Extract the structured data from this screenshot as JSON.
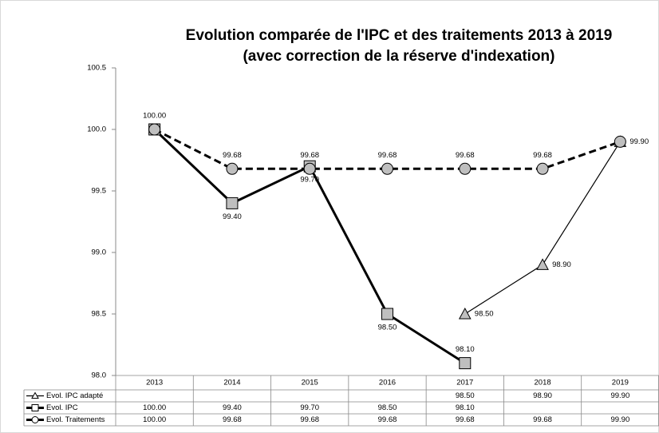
{
  "chart_data": {
    "type": "line",
    "title": "Evolution comparée de l'IPC et des traitements 2013 à 2019",
    "subtitle": "(avec correction de la réserve d'indexation)",
    "categories": [
      "2013",
      "2014",
      "2015",
      "2016",
      "2017",
      "2018",
      "2019"
    ],
    "ylim": [
      98.0,
      100.5
    ],
    "yticks": [
      {
        "value": 98.0,
        "label": "98.0"
      },
      {
        "value": 98.5,
        "label": "98.5"
      },
      {
        "value": 99.0,
        "label": "99.0"
      },
      {
        "value": 99.5,
        "label": "99.5"
      },
      {
        "value": 100.0,
        "label": "100.0"
      },
      {
        "value": 100.5,
        "label": "100.5"
      }
    ],
    "series": [
      {
        "name": "Evol. IPC adapté",
        "color": "#000000",
        "marker": "triangle",
        "marker_color": "#bfbfbf",
        "values": [
          null,
          null,
          null,
          null,
          98.5,
          98.9,
          99.9
        ],
        "value_labels": [
          null,
          null,
          null,
          null,
          "98.50",
          "98.90",
          "99.90"
        ]
      },
      {
        "name": "Evol. IPC",
        "color": "#000000",
        "marker": "square",
        "marker_color": "#bfbfbf",
        "values": [
          100.0,
          99.4,
          99.7,
          98.5,
          98.1,
          null,
          null
        ],
        "value_labels": [
          "100.00",
          "99.40",
          "99.70",
          "98.50",
          "98.10",
          null,
          null
        ]
      },
      {
        "name": "Evol. Traitements",
        "color": "#000000",
        "marker": "circle",
        "marker_color": "#bfbfbf",
        "dashed": true,
        "values": [
          100.0,
          99.68,
          99.68,
          99.68,
          99.68,
          99.68,
          99.9
        ],
        "value_labels": [
          "100.00",
          "99.68",
          "99.68",
          "99.68",
          "99.68",
          "99.68",
          "99.90"
        ]
      }
    ]
  }
}
